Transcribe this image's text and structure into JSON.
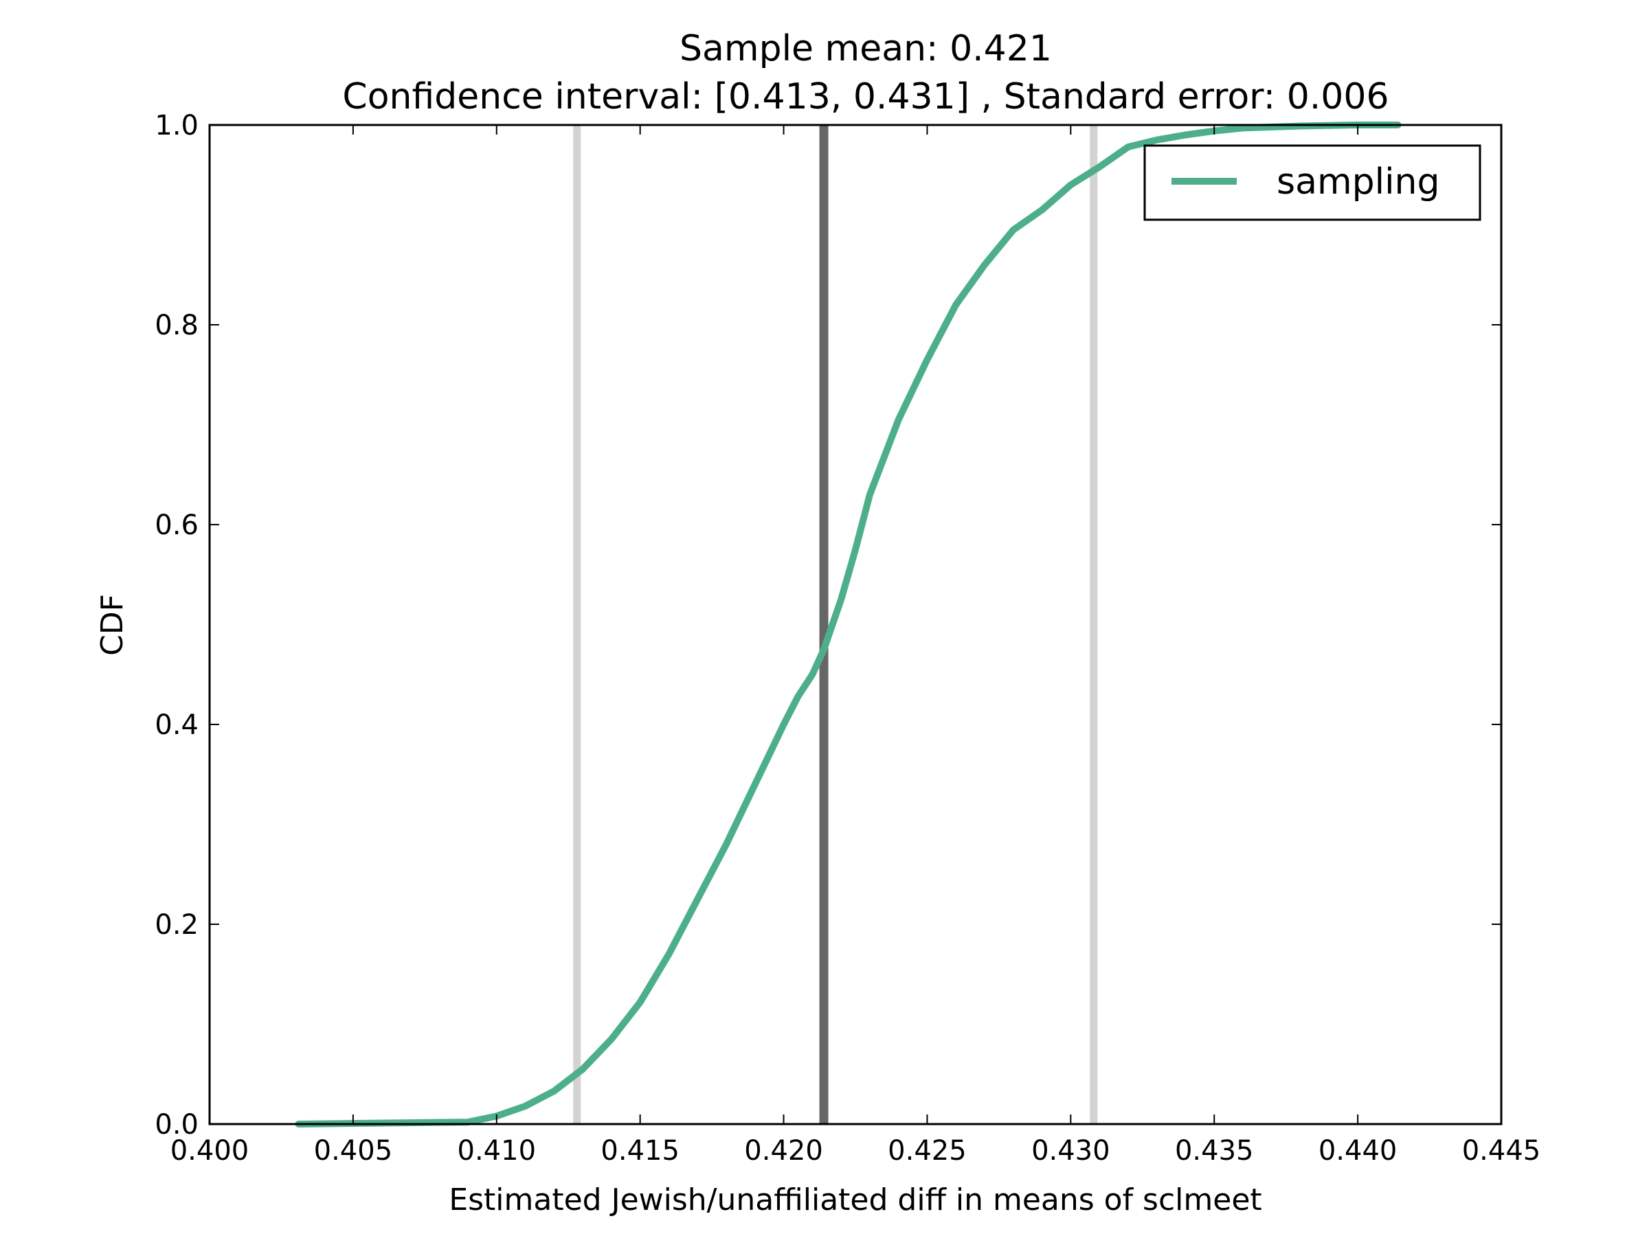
{
  "chart_data": {
    "type": "line",
    "title": "Sample mean: 0.421",
    "subtitle": "Confidence interval: [0.413, 0.431] , Standard error: 0.006",
    "xlabel": "Estimated Jewish/unaffiliated diff in means of sclmeet",
    "ylabel": "CDF",
    "xlim": [
      0.4,
      0.445
    ],
    "ylim": [
      0.0,
      1.0
    ],
    "x_ticks": [
      "0.400",
      "0.405",
      "0.410",
      "0.415",
      "0.420",
      "0.425",
      "0.430",
      "0.435",
      "0.440",
      "0.445"
    ],
    "y_ticks": [
      "0.0",
      "0.2",
      "0.4",
      "0.6",
      "0.8",
      "1.0"
    ],
    "grid": false,
    "legend_position": "top-right",
    "vertical_lines": [
      {
        "x": 0.4128,
        "color": "#d3d3d3",
        "role": "ci-lower"
      },
      {
        "x": 0.4214,
        "color": "#666666",
        "role": "mean"
      },
      {
        "x": 0.4308,
        "color": "#d3d3d3",
        "role": "ci-upper"
      }
    ],
    "series": [
      {
        "name": "sampling",
        "color": "#4daf8a",
        "x": [
          0.4031,
          0.409,
          0.41,
          0.411,
          0.412,
          0.413,
          0.414,
          0.415,
          0.416,
          0.417,
          0.418,
          0.419,
          0.42,
          0.4205,
          0.421,
          0.4214,
          0.422,
          0.4225,
          0.423,
          0.424,
          0.425,
          0.426,
          0.427,
          0.428,
          0.429,
          0.43,
          0.431,
          0.432,
          0.433,
          0.434,
          0.435,
          0.436,
          0.438,
          0.44,
          0.4414
        ],
        "y": [
          0.0,
          0.002,
          0.008,
          0.018,
          0.033,
          0.055,
          0.085,
          0.122,
          0.17,
          0.225,
          0.28,
          0.34,
          0.4,
          0.428,
          0.45,
          0.475,
          0.525,
          0.575,
          0.63,
          0.705,
          0.765,
          0.82,
          0.86,
          0.895,
          0.915,
          0.94,
          0.958,
          0.978,
          0.985,
          0.99,
          0.994,
          0.997,
          0.999,
          1.0,
          1.0
        ]
      }
    ]
  }
}
